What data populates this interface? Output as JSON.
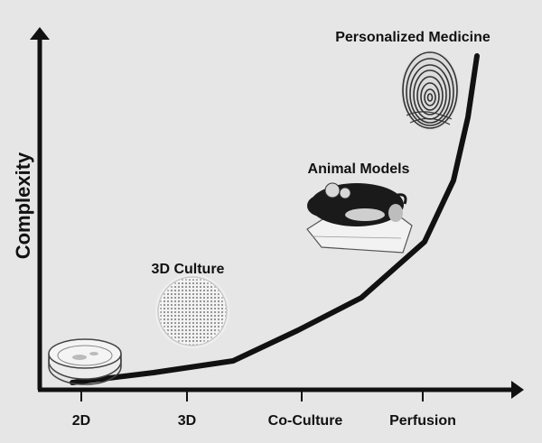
{
  "diagram": {
    "ylabel": "Complexity",
    "xaxis_labels": [
      "2D",
      "3D",
      "Co-Culture",
      "Perfusion"
    ],
    "stages": [
      {
        "label": "3D Culture",
        "icon": "scaffold-disc-icon"
      },
      {
        "label": "Animal Models",
        "icon": "mouse-icon"
      },
      {
        "label": "Personalized Medicine",
        "icon": "fingerprint-icon"
      }
    ],
    "first_icon": "petri-dish-icon",
    "colors": {
      "background": "#e6e6e6",
      "ink": "#111111"
    }
  }
}
